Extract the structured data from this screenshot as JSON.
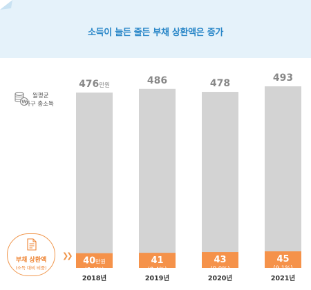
{
  "banner": {
    "title": "소득이 늘든 줄든 부채 상환액은 증가"
  },
  "legend": {
    "income_line1": "월평균",
    "income_line2": "가구 총소득",
    "debt_line1": "부채 상환액",
    "debt_line2": "(소득 대비 비중)"
  },
  "colors": {
    "income_bar": "#d3d3d3",
    "debt_bar": "#f5924a",
    "banner_bg": "#e5f2fa",
    "title": "#2a87c8"
  },
  "chart_data": {
    "type": "bar",
    "categories": [
      "2018년",
      "2019년",
      "2020년",
      "2021년"
    ],
    "series": [
      {
        "name": "월평균 가구 총소득",
        "values": [
          476,
          486,
          478,
          493
        ],
        "labels": [
          "476",
          "486",
          "478",
          "493"
        ],
        "first_unit": "만원"
      },
      {
        "name": "부채 상환액",
        "values": [
          40,
          41,
          43,
          45
        ],
        "labels": [
          "40",
          "41",
          "43",
          "45"
        ],
        "first_unit": "만원",
        "share": [
          "(8.4%)",
          "(8.4%)",
          "(9.0%)",
          "(9.1%)"
        ]
      }
    ],
    "title": "소득이 늘든 줄든 부채 상환액은 증가"
  }
}
